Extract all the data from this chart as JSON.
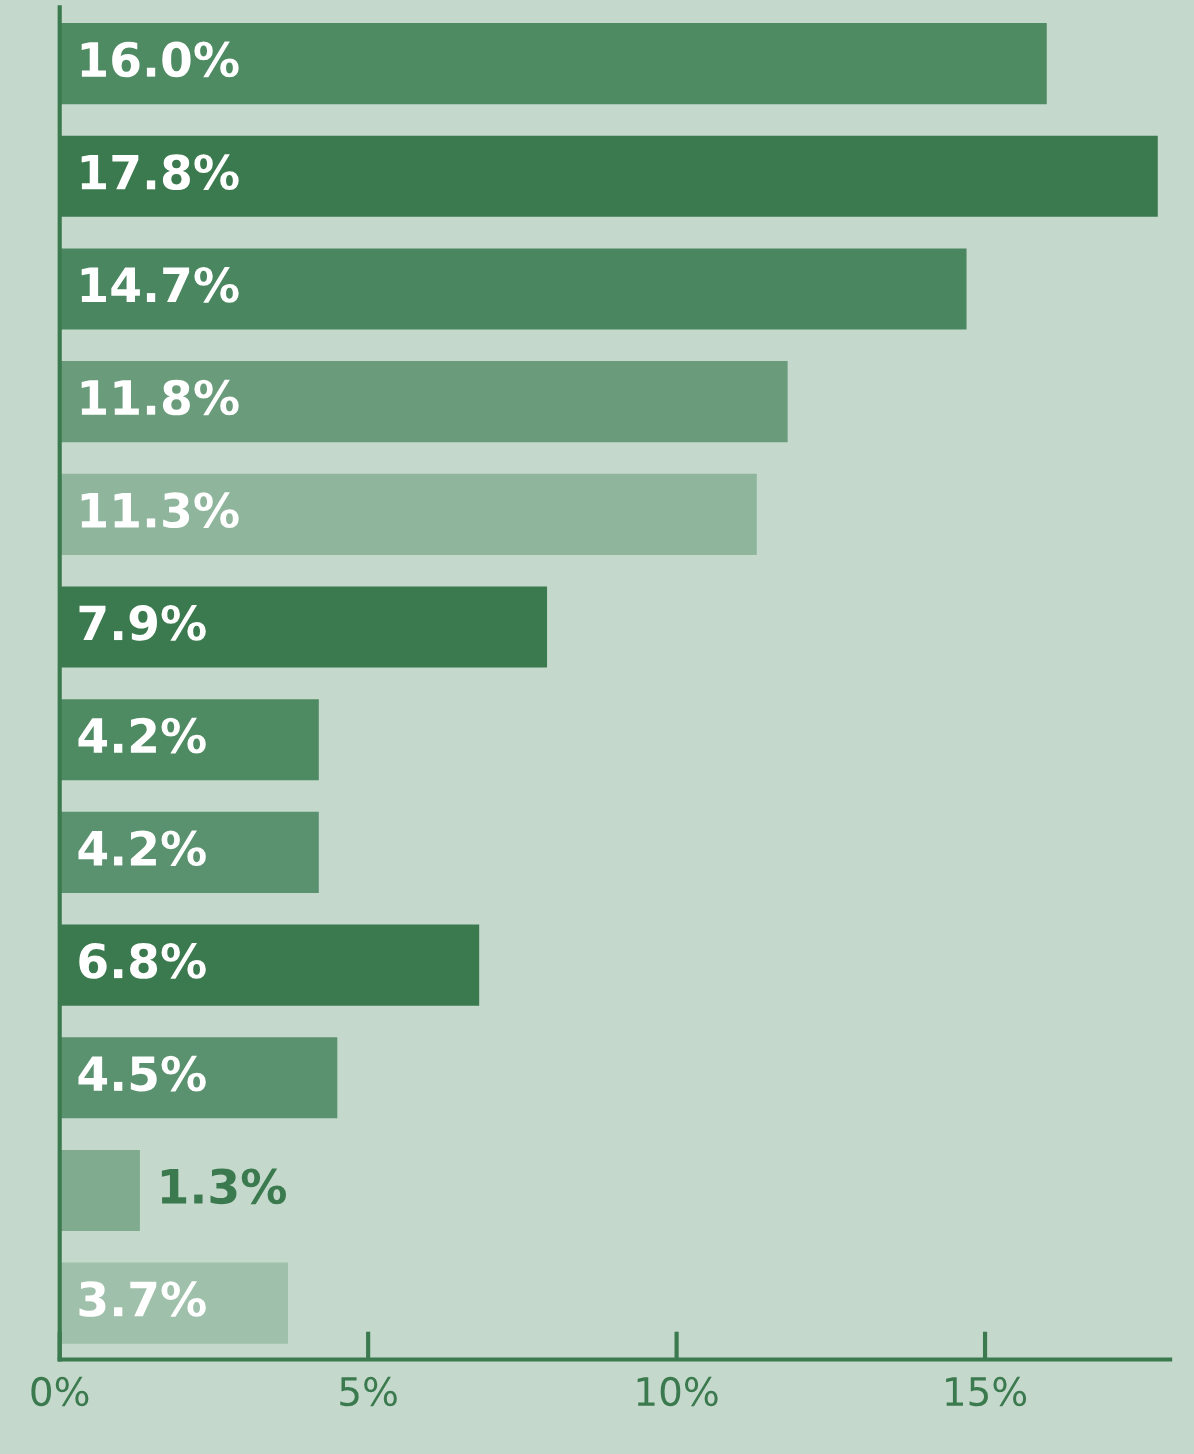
{
  "chart_data": {
    "type": "bar",
    "orientation": "horizontal",
    "categories": [
      null,
      null,
      null,
      null,
      null,
      null,
      null,
      null,
      null,
      null,
      null,
      null
    ],
    "values": [
      16.0,
      17.8,
      14.7,
      11.8,
      11.3,
      7.9,
      4.2,
      4.2,
      6.8,
      4.5,
      1.3,
      3.7
    ],
    "colors": [
      "#4e8a62",
      "#3b7a4e",
      "#4a8660",
      "#6a9c7c",
      "#8fb69c",
      "#3b7a4e",
      "#4e8a62",
      "#5a9270",
      "#3b7a4e",
      "#5a9270",
      "#80ab8f",
      "#9fc0aa"
    ],
    "value_labels": [
      "16.0%",
      "17.8%",
      "14.7%",
      "11.8%",
      "11.3%",
      "7.9%",
      "4.2%",
      "4.2%",
      "6.8%",
      "4.5%",
      "1.3%",
      "3.7%"
    ],
    "xlim": [
      0,
      18
    ],
    "xticks": [
      {
        "value": 0,
        "label": "0%"
      },
      {
        "value": 5,
        "label": "5%"
      },
      {
        "value": 10,
        "label": "10%"
      },
      {
        "value": 15,
        "label": "15%"
      }
    ],
    "grid": false,
    "legend": false
  }
}
